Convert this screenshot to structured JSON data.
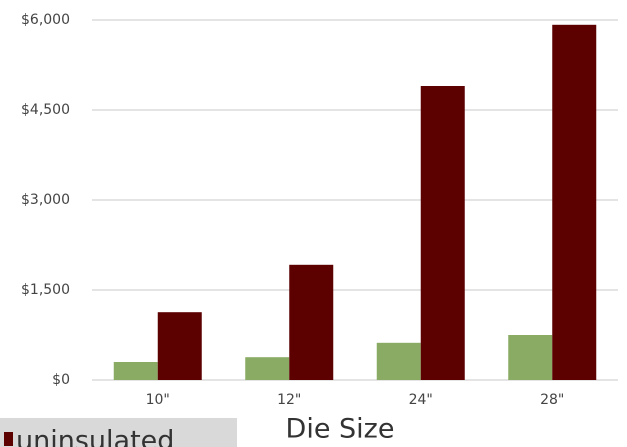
{
  "chart_data": {
    "type": "bar",
    "x_label": "Die Size",
    "categories": [
      "10\"",
      "12\"",
      "24\"",
      "28\""
    ],
    "series": [
      {
        "color": "#8aab63",
        "values": [
          300,
          380,
          620,
          750
        ]
      },
      {
        "name": "uninsulated",
        "color": "#5c0000",
        "values": [
          1130,
          1920,
          4900,
          5920
        ]
      }
    ],
    "ylim": [
      0,
      6000
    ],
    "yticks": [
      {
        "value": 0,
        "label": "$0"
      },
      {
        "value": 1500,
        "label": "$1,500"
      },
      {
        "value": 3000,
        "label": "$3,000"
      },
      {
        "value": 4500,
        "label": "$4,500"
      },
      {
        "value": 6000,
        "label": "$6,000"
      }
    ],
    "grid": true
  }
}
